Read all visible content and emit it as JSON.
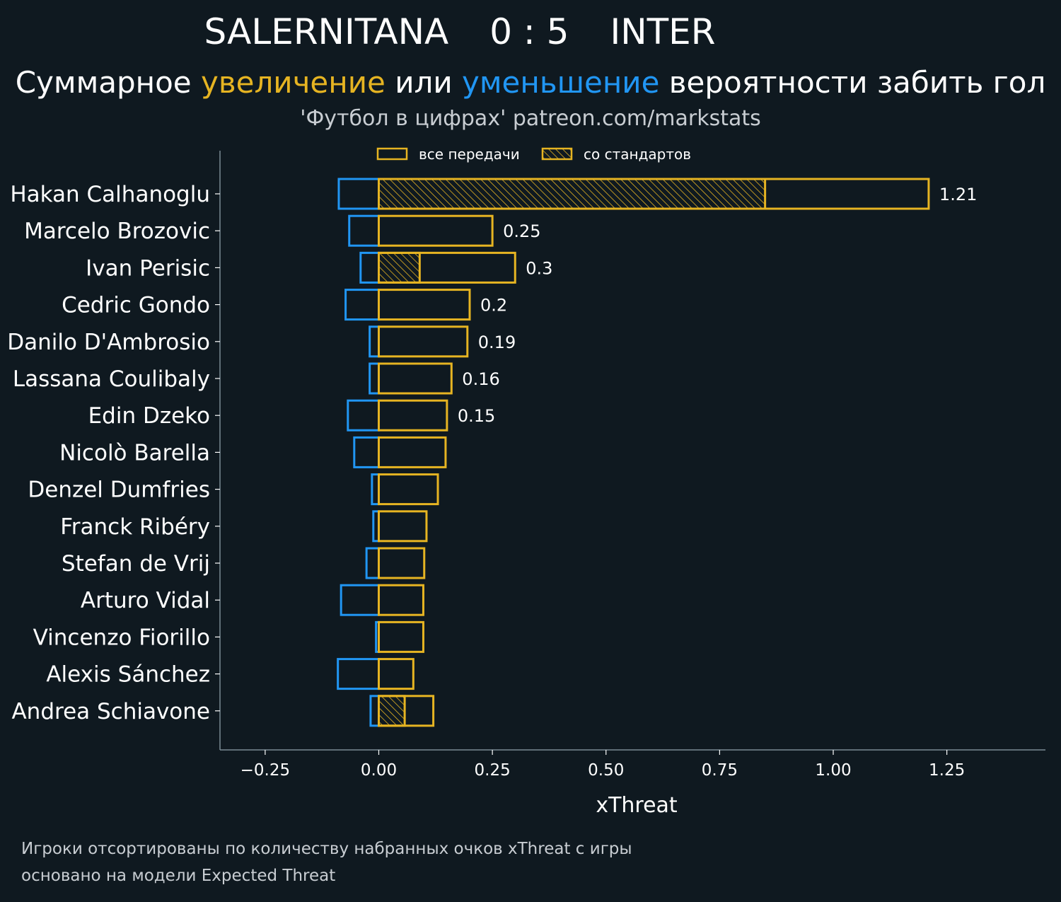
{
  "header": {
    "home_team": "SALERNITANA",
    "score": "0 : 5",
    "away_team": "INTER",
    "subtitle_part1": "Суммарное ",
    "subtitle_increase": "увеличение",
    "subtitle_part2": " или ",
    "subtitle_decrease": "уменьшение",
    "subtitle_part3": " вероятности забить гол",
    "credit": "'Футбол в цифрах' patreon.com/markstats"
  },
  "colors": {
    "background": "#0f1920",
    "increase": "#e6b422",
    "decrease": "#2196f3",
    "axis": "#7a8a94"
  },
  "footer": {
    "line1": "Игроки отсортированы по количеству набранных очков xThreat с игры",
    "line2": "основано на модели Expected Threat"
  },
  "chart_data": {
    "type": "bar",
    "orientation": "horizontal",
    "xlabel": "xThreat",
    "xlim": [
      -0.35,
      1.45
    ],
    "xticks": [
      -0.25,
      0.0,
      0.25,
      0.5,
      0.75,
      1.0,
      1.25
    ],
    "xtick_labels": [
      "−0.25",
      "0.00",
      "0.25",
      "0.50",
      "0.75",
      "1.00",
      "1.25"
    ],
    "legend": {
      "position": "top",
      "all_passes": "все передачи",
      "set_pieces": "со стандартов"
    },
    "categories": [
      "Hakan Calhanoglu",
      "Marcelo Brozovic",
      "Ivan Perisic",
      "Cedric Gondo",
      "Danilo D'Ambrosio",
      "Lassana Coulibaly",
      "Edin Dzeko",
      "Nicolò Barella",
      "Denzel Dumfries",
      "Franck Ribéry",
      "Stefan de Vrij",
      "Arturo Vidal",
      "Vincenzo Fiorillo",
      "Alexis Sánchez",
      "Andrea Schiavone"
    ],
    "series": [
      {
        "name": "увеличение (все передачи)",
        "values": [
          1.21,
          0.25,
          0.3,
          0.2,
          0.195,
          0.16,
          0.15,
          0.147,
          0.13,
          0.105,
          0.1,
          0.098,
          0.098,
          0.076,
          0.12
        ]
      },
      {
        "name": "увеличение (со стандартов)",
        "values": [
          0.85,
          0,
          0.09,
          0,
          0,
          0,
          0,
          0,
          0,
          0,
          0,
          0,
          0,
          0,
          0.057
        ]
      },
      {
        "name": "уменьшение",
        "values": [
          -0.088,
          -0.065,
          -0.04,
          -0.073,
          -0.02,
          -0.02,
          -0.068,
          -0.054,
          -0.015,
          -0.012,
          -0.027,
          -0.083,
          -0.006,
          -0.09,
          -0.018
        ]
      }
    ],
    "data_labels": [
      "1.21",
      "0.25",
      "0.3",
      "0.2",
      "0.19",
      "0.16",
      "0.15",
      "",
      "",
      "",
      "",
      "",
      "",
      "",
      ""
    ]
  }
}
